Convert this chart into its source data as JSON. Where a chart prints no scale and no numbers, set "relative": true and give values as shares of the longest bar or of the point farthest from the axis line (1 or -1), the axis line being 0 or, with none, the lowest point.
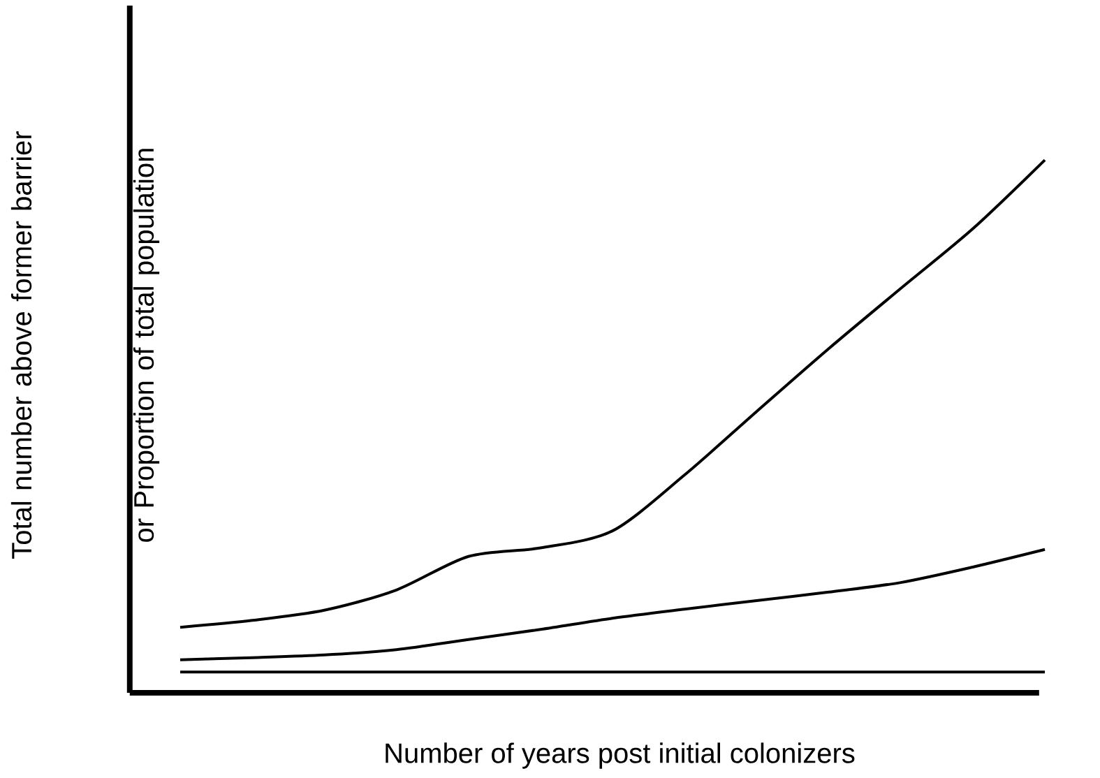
{
  "chart_data": {
    "type": "line",
    "relative": true,
    "xlabel": "Number of years post initial colonizers",
    "ylabel": "Total number above former barrier or Proportion of total population",
    "categories": [
      null,
      null,
      null,
      null,
      null,
      null,
      null,
      null,
      null,
      null,
      null,
      null,
      null
    ],
    "series": [
      {
        "color": "#000000",
        "values": [
          0.123,
          0.136,
          0.155,
          0.193,
          0.256,
          0.272,
          0.304,
          0.409,
          0.528,
          0.646,
          0.759,
          0.871,
          1
        ]
      },
      {
        "color": "#000000",
        "values": [
          0.062,
          0.066,
          0.071,
          0.081,
          0.1,
          0.119,
          0.14,
          0.157,
          0.173,
          0.189,
          0.207,
          0.236,
          0.269
        ]
      },
      {
        "color": "#000000",
        "values": [
          0.039,
          0.039,
          0.039,
          0.039,
          0.039,
          0.039,
          0.039,
          0.039,
          0.039,
          0.039,
          0.039,
          0.039,
          0.039
        ]
      }
    ]
  }
}
